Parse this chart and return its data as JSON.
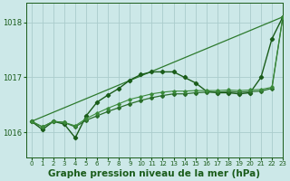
{
  "bg_color": "#cce8e8",
  "grid_color": "#aacccc",
  "line_color_dark": "#1a5c1a",
  "xlabel": "Graphe pression niveau de la mer (hPa)",
  "xlabel_fontsize": 7.5,
  "xlim": [
    -0.5,
    23
  ],
  "ylim": [
    1015.55,
    1018.35
  ],
  "yticks": [
    1016,
    1017,
    1018
  ],
  "xticks": [
    0,
    1,
    2,
    3,
    4,
    5,
    6,
    7,
    8,
    9,
    10,
    11,
    12,
    13,
    14,
    15,
    16,
    17,
    18,
    19,
    20,
    21,
    22,
    23
  ],
  "series": [
    {
      "x": [
        0,
        23
      ],
      "y": [
        1016.2,
        1018.1
      ],
      "marker": null,
      "ms": 0,
      "lw": 0.9,
      "color": "#2d7a2d"
    },
    {
      "x": [
        0,
        1,
        2,
        3,
        4,
        5,
        6,
        7,
        8,
        9,
        10,
        11,
        12,
        13,
        14,
        15,
        16,
        17,
        18,
        19,
        20,
        21,
        22,
        23
      ],
      "y": [
        1016.2,
        1016.05,
        1016.2,
        1016.15,
        1015.9,
        1016.3,
        1016.55,
        1016.68,
        1016.8,
        1016.95,
        1017.05,
        1017.1,
        1017.1,
        1017.1,
        1017.0,
        1016.9,
        1016.75,
        1016.72,
        1016.72,
        1016.7,
        1016.72,
        1017.0,
        1017.7,
        1018.1
      ],
      "marker": "D",
      "ms": 2.2,
      "lw": 1.0,
      "color": "#1a5c1a"
    },
    {
      "x": [
        0,
        1,
        2,
        3,
        4,
        5,
        6,
        7,
        8,
        9,
        10,
        11,
        12,
        13,
        14,
        15,
        16,
        17,
        18,
        19,
        20,
        21,
        22,
        23
      ],
      "y": [
        1016.2,
        1016.1,
        1016.2,
        1016.18,
        1016.1,
        1016.22,
        1016.3,
        1016.38,
        1016.45,
        1016.52,
        1016.58,
        1016.63,
        1016.67,
        1016.7,
        1016.7,
        1016.72,
        1016.73,
        1016.73,
        1016.74,
        1016.73,
        1016.74,
        1016.75,
        1016.8,
        1018.1
      ],
      "marker": "D",
      "ms": 2.0,
      "lw": 0.9,
      "color": "#2a6e2a"
    },
    {
      "x": [
        0,
        1,
        2,
        3,
        4,
        5,
        6,
        7,
        8,
        9,
        10,
        11,
        12,
        13,
        14,
        15,
        16,
        17,
        18,
        19,
        20,
        21,
        22,
        23
      ],
      "y": [
        1016.2,
        1016.1,
        1016.2,
        1016.18,
        1016.12,
        1016.25,
        1016.35,
        1016.44,
        1016.52,
        1016.6,
        1016.65,
        1016.7,
        1016.73,
        1016.75,
        1016.75,
        1016.76,
        1016.76,
        1016.76,
        1016.77,
        1016.76,
        1016.77,
        1016.78,
        1016.82,
        1018.1
      ],
      "marker": "D",
      "ms": 1.8,
      "lw": 0.8,
      "color": "#3a8a3a"
    }
  ]
}
